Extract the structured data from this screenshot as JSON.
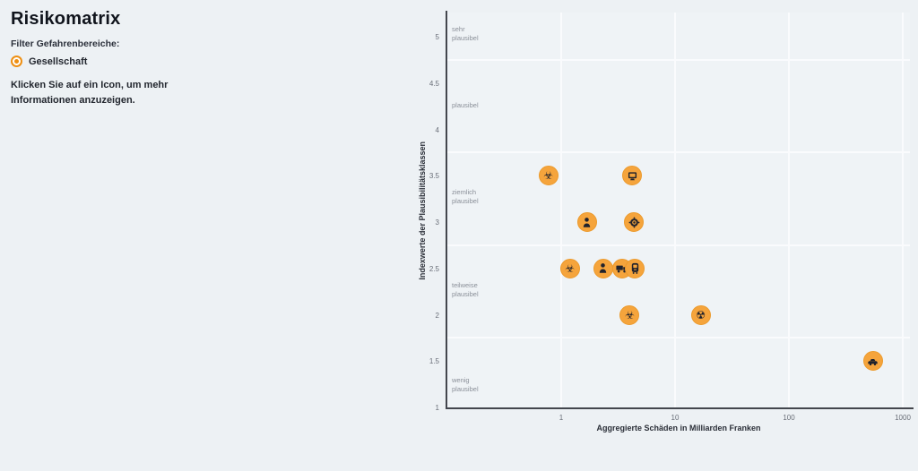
{
  "page": {
    "background": "#edf1f4",
    "accent_orange": "#f5a43c",
    "radio_orange": "#ee8f12"
  },
  "panel": {
    "title": "Risikomatrix",
    "filter_label": "Filter Gefahrenbereiche:",
    "radio_option": "Gesellschaft",
    "hint": "Klicken Sie auf ein Icon, um mehr\nInformationen anzuzeigen."
  },
  "chart_data": {
    "type": "scatter",
    "x_scale": "log",
    "xlabel": "Aggregierte Schäden in Milliarden Franken",
    "ylabel": "Indexwerte der Plausibilitätsklassen",
    "x_ticks": [
      1,
      10,
      100,
      1000
    ],
    "x_tick_labels": [
      "1",
      "10",
      "100",
      "1000"
    ],
    "y_ticks": [
      5,
      4.5,
      4,
      3.5,
      3,
      2.5,
      2,
      1.5,
      1
    ],
    "y_tick_labels": [
      "5",
      "4.5",
      "4",
      "3.5",
      "3",
      "2.5",
      "2",
      "1.5",
      "1"
    ],
    "x_range": [
      0.1,
      1150
    ],
    "y_range": [
      1,
      5.3
    ],
    "grid": true,
    "band_boundaries_y": [
      4.75,
      3.75,
      2.75,
      1.75
    ],
    "plausibility_bands": [
      {
        "label": "sehr\nplausibel",
        "y": 5.03
      },
      {
        "label": "plausibel",
        "y": 4.26
      },
      {
        "label": "ziemlich\nplausibel",
        "y": 3.27
      },
      {
        "label": "teilweise\nplausibel",
        "y": 2.27
      },
      {
        "label": "wenig\nplausibel",
        "y": 1.24
      }
    ],
    "points": [
      {
        "icon": "biohazard",
        "x": 0.77,
        "y": 3.5
      },
      {
        "icon": "monitor",
        "x": 4.2,
        "y": 3.5
      },
      {
        "icon": "person",
        "x": 1.68,
        "y": 3.0
      },
      {
        "icon": "virus",
        "x": 4.35,
        "y": 3.0
      },
      {
        "icon": "biohazard",
        "x": 1.19,
        "y": 2.5
      },
      {
        "icon": "person",
        "x": 2.33,
        "y": 2.5
      },
      {
        "icon": "truck",
        "x": 3.43,
        "y": 2.5
      },
      {
        "icon": "tram",
        "x": 4.45,
        "y": 2.5
      },
      {
        "icon": "biohazard",
        "x": 4.0,
        "y": 2.0
      },
      {
        "icon": "radiation",
        "x": 16.8,
        "y": 2.0
      },
      {
        "icon": "car",
        "x": 547,
        "y": 1.5
      }
    ],
    "marker_color": "#f5a43c",
    "icon_color": "#20222c",
    "text_glyph_icons": {
      "biohazard": "☣",
      "radiation": "☢"
    }
  }
}
